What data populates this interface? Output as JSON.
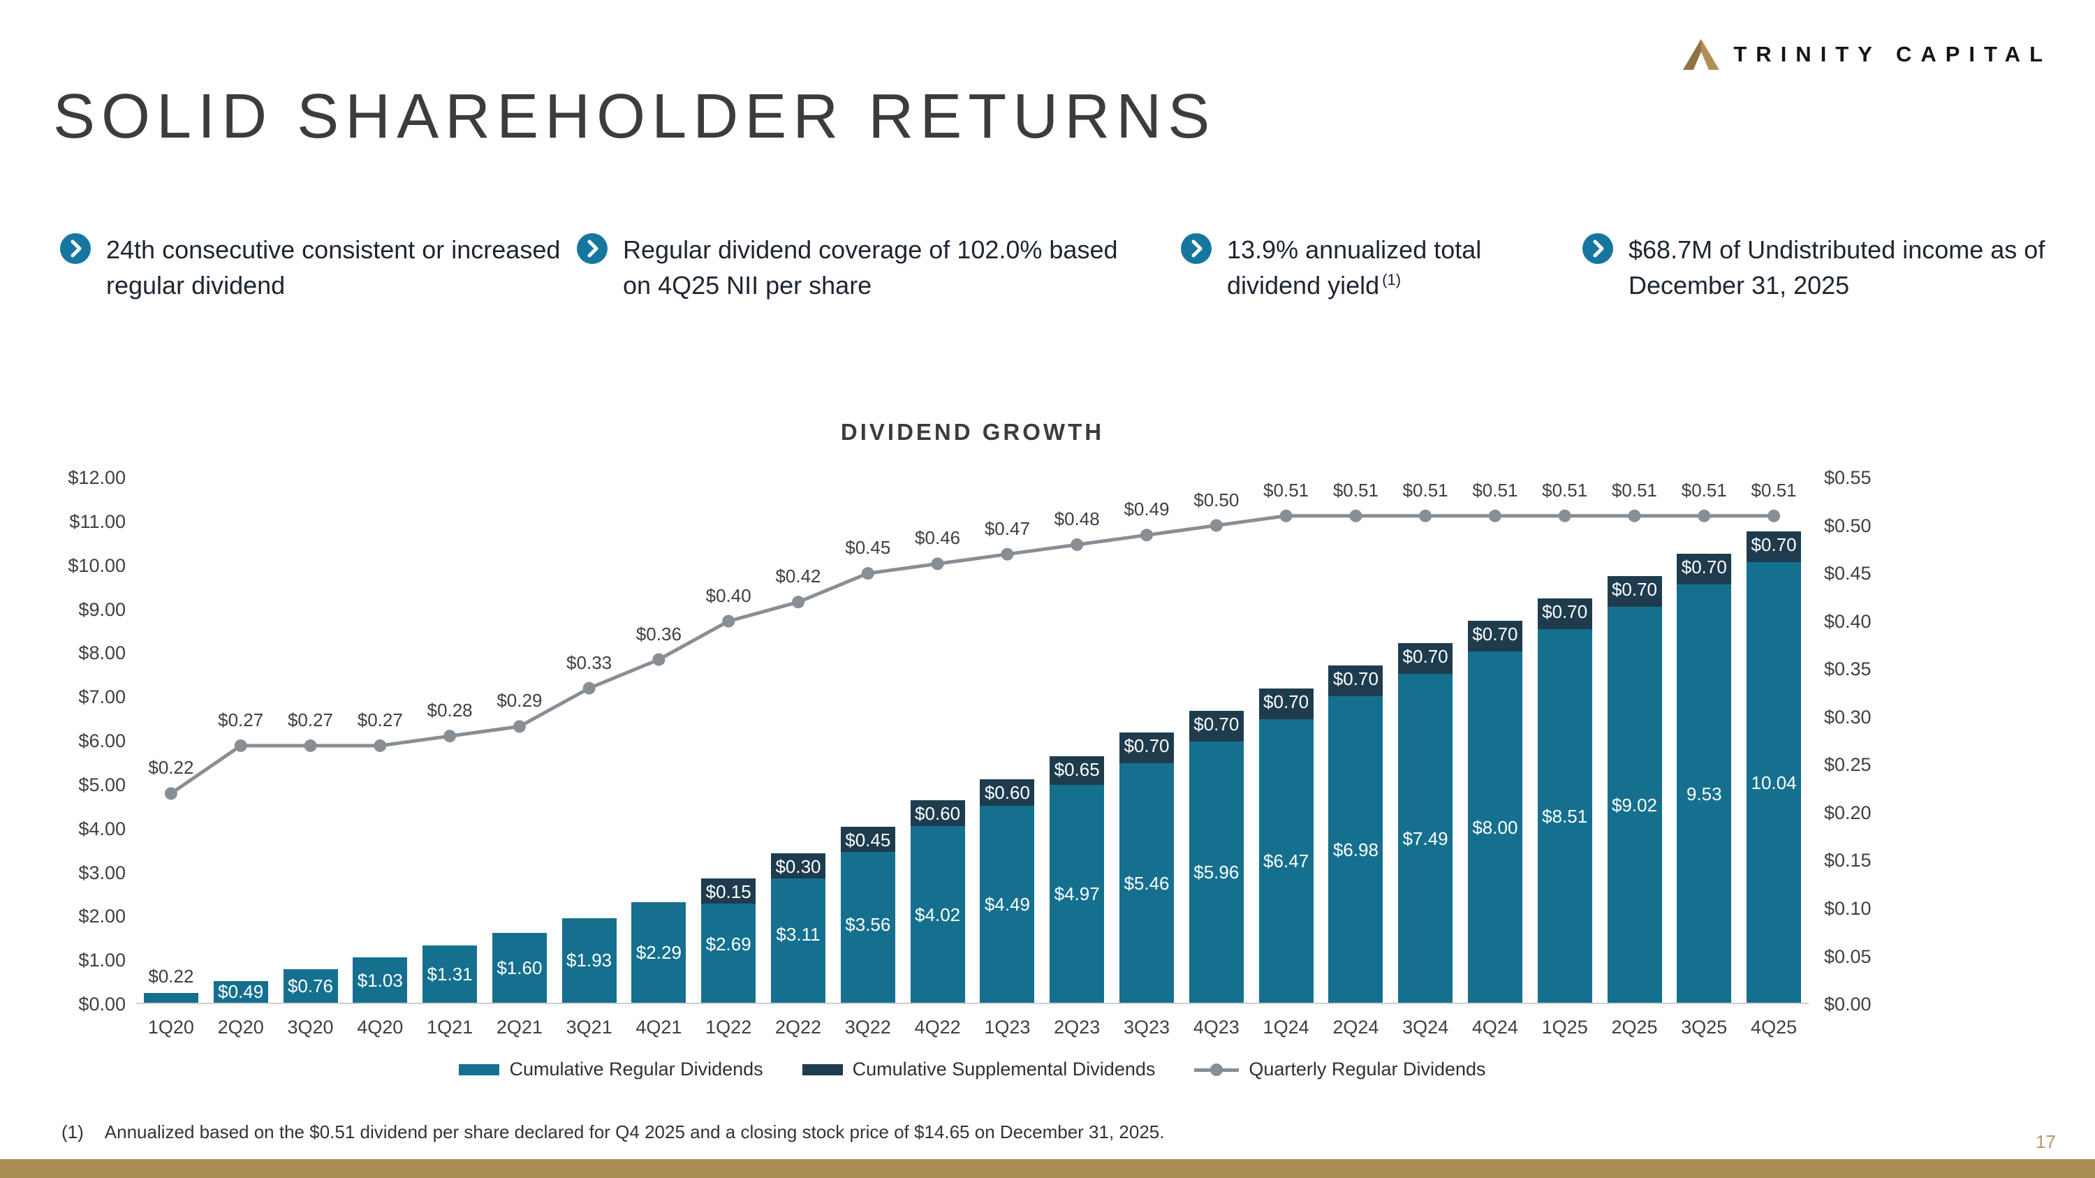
{
  "brand": {
    "name": "TRINITY CAPITAL"
  },
  "title": "SOLID SHAREHOLDER RETURNS",
  "bullets": [
    {
      "text": "24th consecutive consistent or increased regular dividend",
      "sup": ""
    },
    {
      "text": "Regular dividend coverage of 102.0% based on 4Q25 NII per share",
      "sup": ""
    },
    {
      "text": "13.9% annualized total dividend yield",
      "sup": "(1)"
    },
    {
      "text": "$68.7M of Undistributed income as of December 31, 2025",
      "sup": ""
    }
  ],
  "chart_data": {
    "type": "bar",
    "title": "DIVIDEND GROWTH",
    "categories": [
      "1Q20",
      "2Q20",
      "3Q20",
      "4Q20",
      "1Q21",
      "2Q21",
      "3Q21",
      "4Q21",
      "1Q22",
      "2Q22",
      "3Q22",
      "4Q22",
      "1Q23",
      "2Q23",
      "3Q23",
      "4Q23",
      "1Q24",
      "2Q24",
      "3Q24",
      "4Q24",
      "1Q25",
      "2Q25",
      "3Q25",
      "4Q25"
    ],
    "series": [
      {
        "name": "Cumulative Regular Dividends",
        "type": "bar",
        "axis": "left",
        "color": "#15708f",
        "values": [
          0.22,
          0.49,
          0.76,
          1.03,
          1.31,
          1.6,
          1.93,
          2.29,
          2.69,
          3.11,
          3.56,
          4.02,
          4.49,
          4.97,
          5.46,
          5.96,
          6.47,
          6.98,
          7.49,
          8.0,
          8.51,
          9.02,
          9.53,
          10.04
        ],
        "labels": [
          "$0.22",
          "$0.49",
          "$0.76",
          "$1.03",
          "$1.31",
          "$1.60",
          "$1.93",
          "$2.29",
          "$2.69",
          "$3.11",
          "$3.56",
          "$4.02",
          "$4.49",
          "$4.97",
          "$5.46",
          "$5.96",
          "$6.47",
          "$6.98",
          "$7.49",
          "$8.00",
          "$8.51",
          "$9.02",
          "9.53",
          "10.04"
        ]
      },
      {
        "name": "Cumulative Supplemental Dividends",
        "type": "bar",
        "axis": "left",
        "color": "#1e3c4e",
        "values": [
          0,
          0,
          0,
          0,
          0,
          0,
          0,
          0,
          0.15,
          0.3,
          0.45,
          0.6,
          0.6,
          0.65,
          0.7,
          0.7,
          0.7,
          0.7,
          0.7,
          0.7,
          0.7,
          0.7,
          0.7,
          0.7
        ],
        "labels": [
          "",
          "",
          "",
          "",
          "",
          "",
          "",
          "",
          "$0.15",
          "$0.30",
          "$0.45",
          "$0.60",
          "$0.60",
          "$0.65",
          "$0.70",
          "$0.70",
          "$0.70",
          "$0.70",
          "$0.70",
          "$0.70",
          "$0.70",
          "$0.70",
          "$0.70",
          "$0.70"
        ]
      },
      {
        "name": "Quarterly Regular Dividends",
        "type": "line",
        "axis": "right",
        "color": "#878e94",
        "values": [
          0.22,
          0.27,
          0.27,
          0.27,
          0.28,
          0.29,
          0.33,
          0.36,
          0.4,
          0.42,
          0.45,
          0.46,
          0.47,
          0.48,
          0.49,
          0.5,
          0.51,
          0.51,
          0.51,
          0.51,
          0.51,
          0.51,
          0.51,
          0.51
        ],
        "labels": [
          "$0.22",
          "$0.27",
          "$0.27",
          "$0.27",
          "$0.28",
          "$0.29",
          "$0.33",
          "$0.36",
          "$0.40",
          "$0.42",
          "$0.45",
          "$0.46",
          "$0.47",
          "$0.48",
          "$0.49",
          "$0.50",
          "$0.51",
          "$0.51",
          "$0.51",
          "$0.51",
          "$0.51",
          "$0.51",
          "$0.51",
          "$0.51"
        ]
      }
    ],
    "left_axis": {
      "min": 0,
      "max": 12,
      "step": 1,
      "labels": [
        "$12.00",
        "$11.00",
        "$10.00",
        "$9.00",
        "$8.00",
        "$7.00",
        "$6.00",
        "$5.00",
        "$4.00",
        "$3.00",
        "$2.00",
        "$1.00",
        "$0.00"
      ]
    },
    "right_axis": {
      "min": 0,
      "max": 0.55,
      "step": 0.05,
      "labels": [
        "$0.55",
        "$0.50",
        "$0.45",
        "$0.40",
        "$0.35",
        "$0.30",
        "$0.25",
        "$0.20",
        "$0.15",
        "$0.10",
        "$0.05",
        "$0.00"
      ]
    },
    "grid": false,
    "legend_position": "bottom"
  },
  "footnote": {
    "marker": "(1)",
    "text": "Annualized based on the $0.51 dividend per share declared for Q4 2025 and a closing stock price of $14.65 on December 31, 2025."
  },
  "page_number": "17",
  "colors": {
    "accent_teal": "#15708f",
    "dark_navy": "#1e3c4e",
    "line_gray": "#878e94",
    "gold": "#a98d55"
  }
}
